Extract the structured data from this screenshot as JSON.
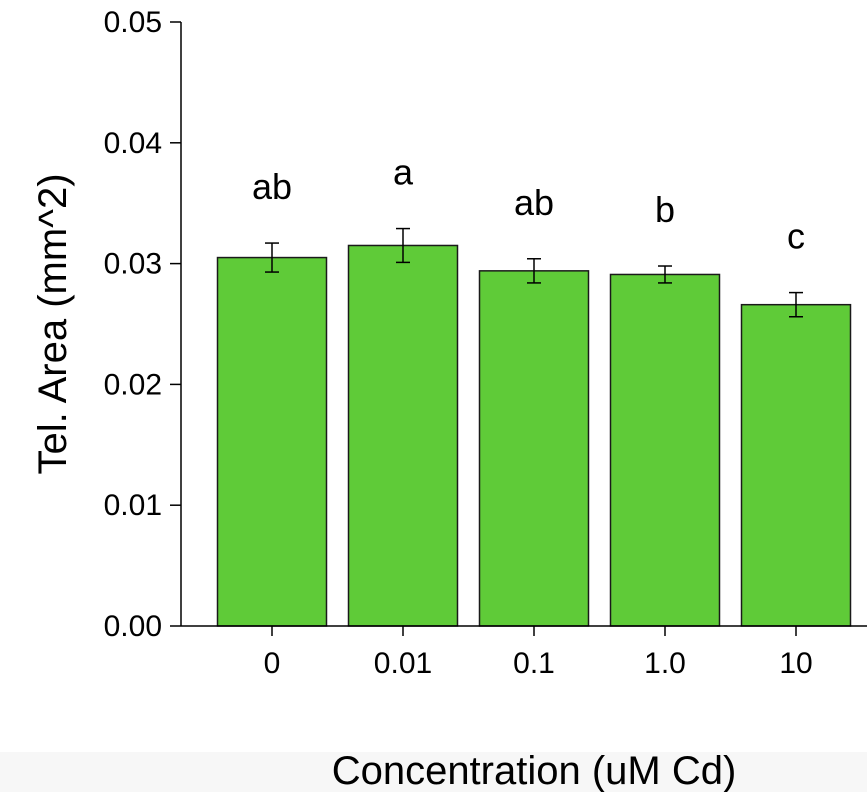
{
  "chart_data": {
    "type": "bar",
    "xlabel": "Concentration (uM Cd)",
    "ylabel": "Tel. Area (mm^2)",
    "ylim": [
      0,
      0.05
    ],
    "yticks": [
      "0.00",
      "0.01",
      "0.02",
      "0.03",
      "0.04",
      "0.05"
    ],
    "categories": [
      "0",
      "0.01",
      "0.1",
      "1.0",
      "10"
    ],
    "values": [
      0.0305,
      0.0315,
      0.0294,
      0.0291,
      0.0266
    ],
    "errors": [
      0.0012,
      0.0014,
      0.001,
      0.0007,
      0.001
    ],
    "significance_labels": [
      "ab",
      "a",
      "ab",
      "b",
      "c"
    ],
    "bar_color": "#5fcb38",
    "bar_edge_color": "#1a1a1a",
    "grid": false
  }
}
